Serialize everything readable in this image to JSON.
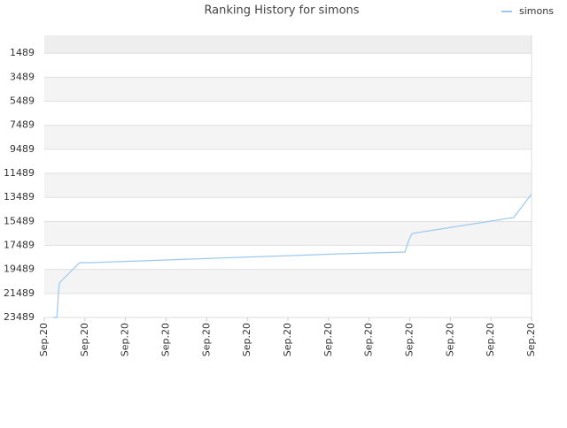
{
  "chart_data": {
    "type": "line",
    "title": "Ranking History for simons",
    "x": [
      0.22,
      0.31,
      0.35,
      0.37,
      0.87,
      1.18,
      1.75,
      2.4,
      3.6,
      4.8,
      6.11,
      7.31,
      8.88,
      8.99,
      9.06,
      11.56,
      12
    ],
    "series": [
      {
        "name": "simons",
        "color": "#9cc8f0",
        "values": [
          23489,
          23489,
          21354,
          20617,
          18924,
          18924,
          18850,
          18776,
          18629,
          18482,
          18335,
          18187,
          18040,
          16936,
          16494,
          15168,
          13211
        ]
      }
    ],
    "xlim": [
      0,
      12
    ],
    "xticks": [
      {
        "value": 0,
        "label": "Sep.20"
      },
      {
        "value": 1,
        "label": "Sep.20"
      },
      {
        "value": 2,
        "label": "Sep.20"
      },
      {
        "value": 3,
        "label": "Sep.20"
      },
      {
        "value": 4,
        "label": "Sep.20"
      },
      {
        "value": 5,
        "label": "Sep.20"
      },
      {
        "value": 6,
        "label": "Sep.20"
      },
      {
        "value": 7,
        "label": "Sep.20"
      },
      {
        "value": 8,
        "label": "Sep.20"
      },
      {
        "value": 9,
        "label": "Sep.20"
      },
      {
        "value": 10,
        "label": "Sep.20"
      },
      {
        "value": 11,
        "label": "Sep.20"
      },
      {
        "value": 12,
        "label": "Sep.20"
      }
    ],
    "ylim": [
      23489,
      0
    ],
    "y_inverted": true,
    "yticks": [
      1489,
      3489,
      5489,
      7489,
      9489,
      11489,
      13489,
      15489,
      17489,
      19489,
      21489,
      23489
    ],
    "grid": true,
    "legend": "top-right"
  }
}
